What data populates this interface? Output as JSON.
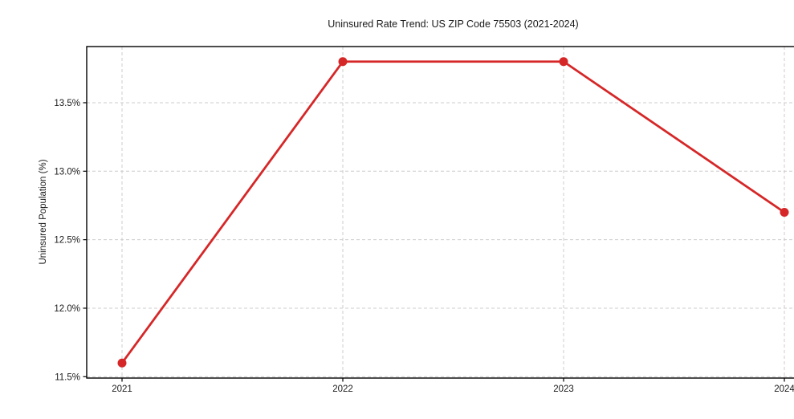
{
  "chart_data": {
    "type": "line",
    "title": "Uninsured Rate Trend: US ZIP Code 75503 (2021-2024)",
    "xlabel": "",
    "ylabel": "Uninsured Population (%)",
    "categories": [
      "2021",
      "2022",
      "2023",
      "2024"
    ],
    "series": [
      {
        "name": "Uninsured Population (%)",
        "values": [
          11.6,
          13.8,
          13.8,
          12.7
        ]
      }
    ],
    "ylim": [
      11.49,
      13.91
    ],
    "yticks": [
      11.5,
      12.0,
      12.5,
      13.0,
      13.5
    ],
    "ytick_labels": [
      "11.5%",
      "12.0%",
      "12.5%",
      "13.0%",
      "13.5%"
    ],
    "grid": true,
    "grid_style": "dashed",
    "legend_position": "none",
    "colors": {
      "line": "#d62728",
      "marker": "#d62728",
      "grid": "#cccccc",
      "axis": "#000000",
      "text": "#1a1a1a",
      "background": "#ffffff"
    }
  }
}
